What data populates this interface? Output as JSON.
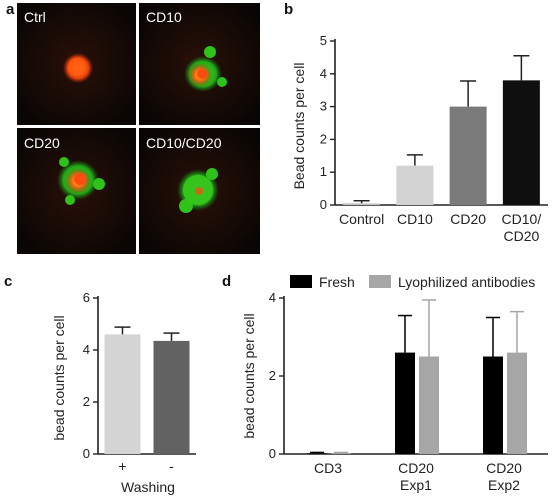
{
  "panels": {
    "a": "a",
    "b": "b",
    "c": "c",
    "d": "d"
  },
  "chart_data": [
    {
      "panel": "a",
      "type": "image-grid",
      "tiles": [
        "Ctrl",
        "CD10",
        "CD20",
        "CD10/CD20"
      ]
    },
    {
      "panel": "b",
      "type": "bar",
      "categories": [
        [
          "Control"
        ],
        [
          "CD10"
        ],
        [
          "CD20"
        ],
        [
          "CD10/",
          "CD20"
        ]
      ],
      "values": [
        0.05,
        1.2,
        3.0,
        3.8
      ],
      "errors": [
        0.08,
        0.33,
        0.78,
        0.75
      ],
      "colors": [
        "#c4c4c4",
        "#d2d2d2",
        "#7a7a7a",
        "#0f0f0f"
      ],
      "ylabel": "Bead counts per cell",
      "ylim": [
        0,
        5
      ],
      "yticks": [
        "0",
        "1",
        "2",
        "3",
        "4",
        "5"
      ]
    },
    {
      "panel": "c",
      "type": "bar",
      "categories": [
        [
          "+"
        ],
        [
          "-"
        ]
      ],
      "values": [
        4.6,
        4.35
      ],
      "errors": [
        0.28,
        0.3
      ],
      "colors": [
        "#d4d4d4",
        "#626262"
      ],
      "xlabel": "Washing",
      "ylabel": "bead counts per cell",
      "ylim": [
        0,
        6
      ],
      "yticks": [
        "0",
        "2",
        "4",
        "6"
      ]
    },
    {
      "panel": "d",
      "type": "bar",
      "categories": [
        [
          "CD3"
        ],
        [
          "CD20",
          "Exp1"
        ],
        [
          "CD20",
          "Exp2"
        ]
      ],
      "series": [
        {
          "name": "Fresh",
          "values": [
            0.02,
            2.6,
            2.5
          ],
          "errors": [
            0.02,
            0.95,
            1.0
          ],
          "color": "#000000"
        },
        {
          "name": "Lyophilized antibodies",
          "values": [
            0.02,
            2.5,
            2.6
          ],
          "errors": [
            0.02,
            1.45,
            1.05
          ],
          "color": "#a6a6a6"
        }
      ],
      "ylabel": "bead counts per cell",
      "ylim": [
        0,
        4
      ],
      "yticks": [
        "0",
        "2",
        "4"
      ]
    }
  ]
}
